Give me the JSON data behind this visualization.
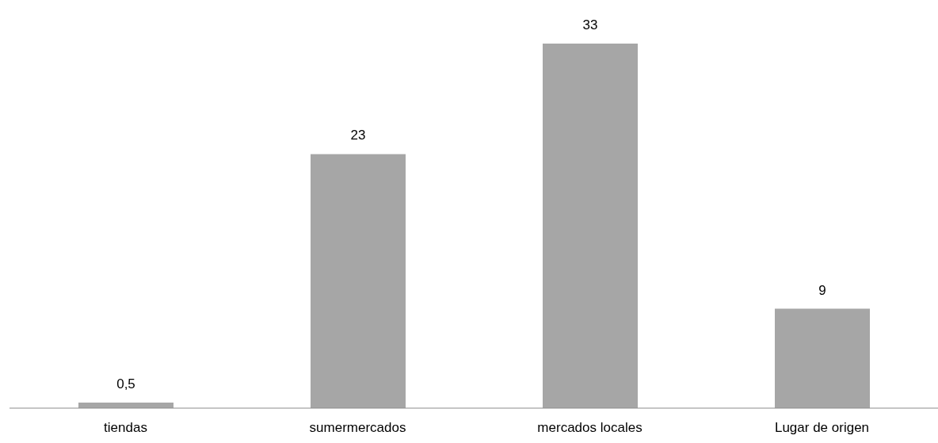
{
  "chart_data": {
    "type": "bar",
    "categories": [
      "tiendas",
      "sumermercados",
      "mercados locales",
      "Lugar de origen"
    ],
    "values": [
      0.5,
      23,
      33,
      9
    ],
    "color": "#a6a6a6",
    "value_labels": [
      "0,5",
      "23",
      "33",
      "9"
    ],
    "grid": false,
    "legend": false
  }
}
